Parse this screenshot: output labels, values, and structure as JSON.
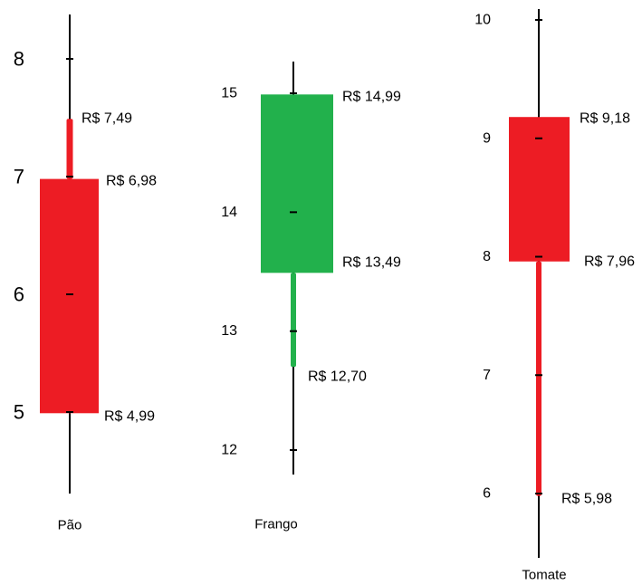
{
  "chart_data": [
    {
      "type": "candlestick",
      "category": "Pão",
      "direction": "down",
      "open": 6.98,
      "close": 4.99,
      "high": 7.49,
      "low": 4.99,
      "ticks": [
        5,
        6,
        7,
        8
      ],
      "tick_labels": [
        "5",
        "6",
        "7",
        "8"
      ],
      "labels": {
        "high": "R$ 7,49",
        "open": "R$ 6,98",
        "close": "R$ 4,99"
      },
      "color": "#ed1c24"
    },
    {
      "type": "candlestick",
      "category": "Frango",
      "direction": "up",
      "open": 13.49,
      "close": 14.99,
      "high": 14.99,
      "low": 12.7,
      "ticks": [
        12,
        13,
        14,
        15
      ],
      "tick_labels": [
        "12",
        "13",
        "14",
        "15"
      ],
      "labels": {
        "close": "R$ 14,99",
        "open": "R$ 13,49",
        "low": "R$ 12,70"
      },
      "color": "#22b14c"
    },
    {
      "type": "candlestick",
      "category": "Tomate",
      "direction": "down",
      "open": 9.18,
      "close": 7.96,
      "high": 9.18,
      "low": 5.98,
      "ticks": [
        6,
        7,
        8,
        9,
        10
      ],
      "tick_labels": [
        "6",
        "7",
        "8",
        "9",
        "10"
      ],
      "labels": {
        "open": "R$ 9,18",
        "close": "R$ 7,96",
        "low": "R$ 5,98"
      },
      "color": "#ed1c24"
    }
  ]
}
